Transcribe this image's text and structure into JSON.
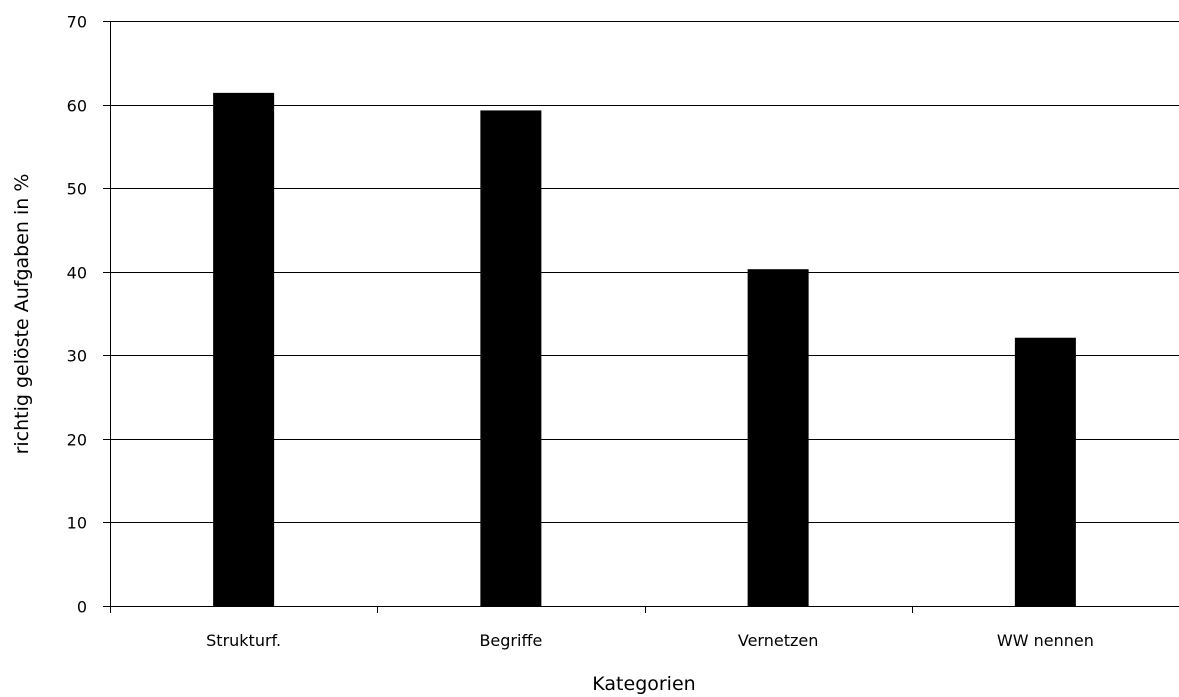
{
  "chart_data": {
    "type": "bar",
    "categories": [
      "Strukturf.",
      "Begriffe",
      "Vernetzen",
      "WW nennen"
    ],
    "values": [
      61.4,
      59.3,
      40.3,
      32.1
    ],
    "xlabel": "Kategorien",
    "ylabel": "richtig gelöste Aufgaben in %",
    "ylim": [
      0,
      70
    ],
    "yticks": [
      0,
      10,
      20,
      30,
      40,
      50,
      60,
      70
    ],
    "ytick_labels": [
      "0",
      "10",
      "20",
      "30",
      "40",
      "50",
      "60",
      "70"
    ],
    "grid": true,
    "legend": "none",
    "bar_color": "#000000"
  }
}
